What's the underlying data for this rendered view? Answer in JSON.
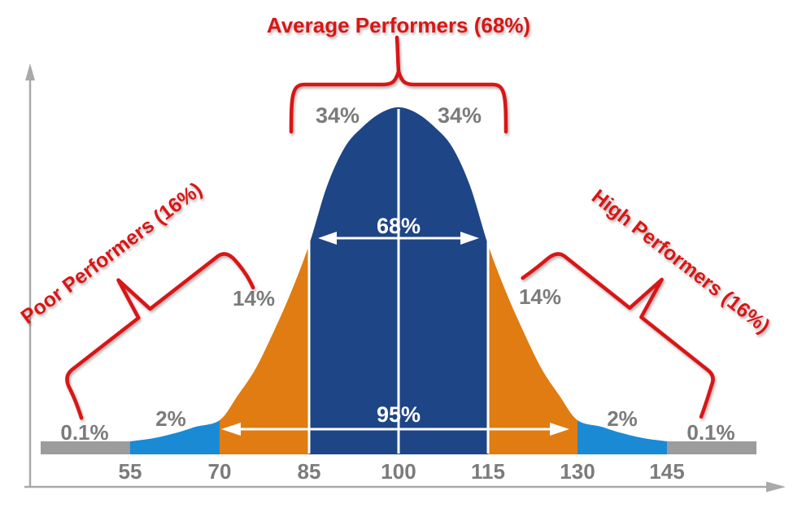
{
  "chart_data": {
    "type": "area",
    "curve_shape": "normal-distribution-bell",
    "mean": 100,
    "std_dev": 15,
    "x_ticks": [
      "55",
      "70",
      "85",
      "100",
      "115",
      "130",
      "145"
    ],
    "segments": [
      {
        "range": "< 55",
        "value": "0.1%",
        "color": "#9c9c9c"
      },
      {
        "range": "55-70",
        "value": "2%",
        "color": "#1a8ad4"
      },
      {
        "range": "70-85",
        "value": "14%",
        "color": "#e07c11"
      },
      {
        "range": "85-100",
        "value": "34%",
        "color": "#1e4586"
      },
      {
        "range": "100-115",
        "value": "34%",
        "color": "#1e4586"
      },
      {
        "range": "115-130",
        "value": "14%",
        "color": "#e07c11"
      },
      {
        "range": "130-145",
        "value": "2%",
        "color": "#1a8ad4"
      },
      {
        "range": "> 145",
        "value": "0.1%",
        "color": "#9c9c9c"
      }
    ],
    "spans": [
      {
        "label": "68%",
        "from": 85,
        "to": 115
      },
      {
        "label": "95%",
        "from": 70,
        "to": 130
      }
    ],
    "groups": [
      {
        "label": "Poor Performers (16%)",
        "position": "left"
      },
      {
        "label": "Average Performers (68%)",
        "position": "top-center"
      },
      {
        "label": "High Performers (16%)",
        "position": "right"
      }
    ]
  },
  "colors": {
    "annotation_red": "#d81414",
    "center_blue": "#1e4586",
    "mid_orange": "#e07c11",
    "tail_blue": "#1a8ad4",
    "tail_bar_gray": "#9c9c9c",
    "label_gray": "#7b7b7b",
    "axis_gray": "#a9a9a9",
    "span_text_white": "#ffffff"
  }
}
